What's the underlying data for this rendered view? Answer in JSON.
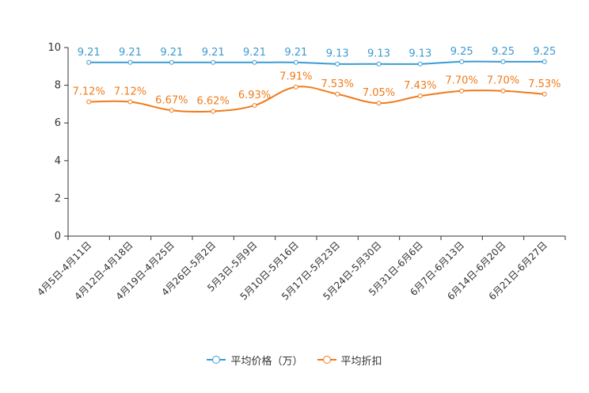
{
  "chart_data": {
    "type": "line",
    "categories": [
      "4月5日-4月11日",
      "4月12日-4月18日",
      "4月19日-4月25日",
      "4月26日-5月2日",
      "5月3日-5月9日",
      "5月10日-5月16日",
      "5月17日-5月23日",
      "5月24日-5月30日",
      "5月31日-6月6日",
      "6月7日-6月13日",
      "6月14日-6月20日",
      "6月21日-6月27日"
    ],
    "ylim": [
      0,
      10
    ],
    "yticks": [
      "0",
      "2",
      "4",
      "6",
      "8",
      "10"
    ],
    "series": [
      {
        "name": "平均价格（万）",
        "color": "#3c9bd1",
        "values": [
          9.21,
          9.21,
          9.21,
          9.21,
          9.21,
          9.21,
          9.13,
          9.13,
          9.13,
          9.25,
          9.25,
          9.25
        ],
        "labels": [
          "9.21",
          "9.21",
          "9.21",
          "9.21",
          "9.21",
          "9.21",
          "9.13",
          "9.13",
          "9.13",
          "9.25",
          "9.25",
          "9.25"
        ]
      },
      {
        "name": "平均折扣",
        "color": "#f07b1a",
        "values": [
          7.12,
          7.12,
          6.67,
          6.62,
          6.93,
          7.91,
          7.53,
          7.05,
          7.43,
          7.7,
          7.7,
          7.53
        ],
        "labels": [
          "7.12%",
          "7.12%",
          "6.67%",
          "6.62%",
          "6.93%",
          "7.91%",
          "7.53%",
          "7.05%",
          "7.43%",
          "7.70%",
          "7.70%",
          "7.53%"
        ]
      }
    ],
    "legend": [
      "平均价格（万）",
      "平均折扣"
    ]
  }
}
